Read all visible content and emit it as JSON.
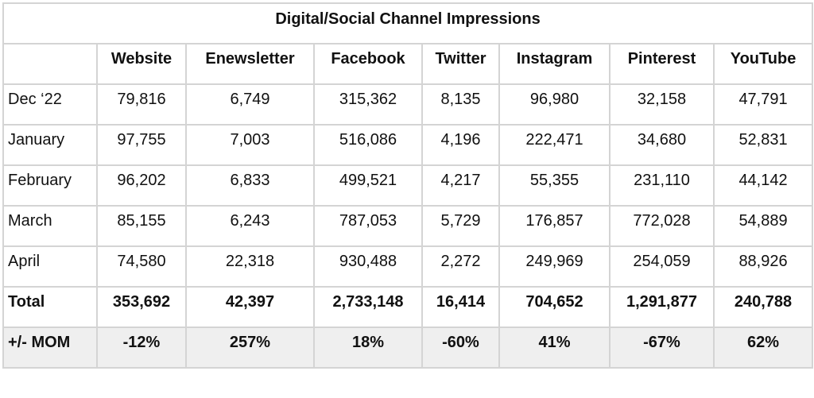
{
  "title": "Digital/Social Channel Impressions",
  "columns": [
    "Website",
    "Enewsletter",
    "Facebook",
    "Twitter",
    "Instagram",
    "Pinterest",
    "YouTube"
  ],
  "rows": [
    {
      "label": "Dec ‘22",
      "values": [
        "79,816",
        "6,749",
        "315,362",
        "8,135",
        "96,980",
        "32,158",
        "47,791"
      ]
    },
    {
      "label": "January",
      "values": [
        "97,755",
        "7,003",
        "516,086",
        "4,196",
        "222,471",
        "34,680",
        "52,831"
      ]
    },
    {
      "label": "February",
      "values": [
        "96,202",
        "6,833",
        "499,521",
        "4,217",
        "55,355",
        "231,110",
        "44,142"
      ]
    },
    {
      "label": "March",
      "values": [
        "85,155",
        "6,243",
        "787,053",
        "5,729",
        "176,857",
        "772,028",
        "54,889"
      ]
    },
    {
      "label": "April",
      "values": [
        "74,580",
        "22,318",
        "930,488",
        "2,272",
        "249,969",
        "254,059",
        "88,926"
      ]
    }
  ],
  "total": {
    "label": "Total",
    "values": [
      "353,692",
      "42,397",
      "2,733,148",
      "16,414",
      "704,652",
      "1,291,877",
      "240,788"
    ]
  },
  "mom": {
    "label": "+/- MOM",
    "values": [
      "-12%",
      "257%",
      "18%",
      "-60%",
      "41%",
      "-67%",
      "62%"
    ]
  }
}
